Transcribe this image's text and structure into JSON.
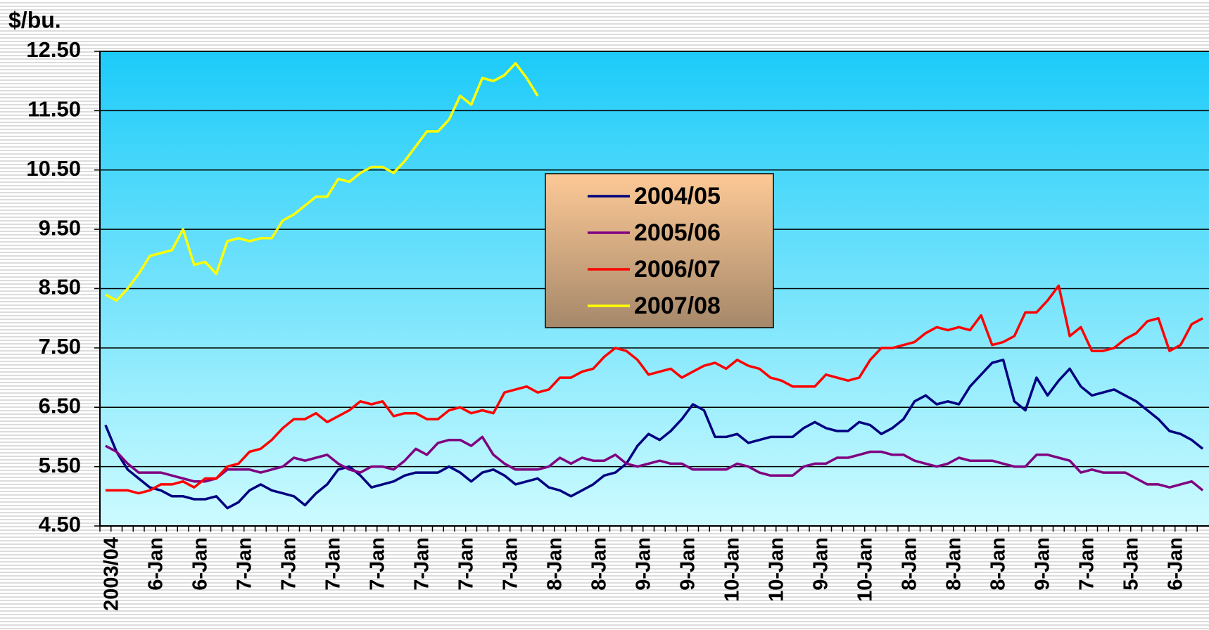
{
  "chart_data": {
    "type": "line",
    "y_label": "$/bu.",
    "categories": [
      "2003/04",
      null,
      null,
      null,
      "6-Jan",
      null,
      null,
      null,
      "6-Jan",
      null,
      null,
      null,
      "7-Jan",
      null,
      null,
      null,
      "7-Jan",
      null,
      null,
      null,
      "7-Jan",
      null,
      null,
      null,
      "7-Jan",
      null,
      null,
      null,
      "7-Jan",
      null,
      null,
      null,
      "7-Jan",
      null,
      null,
      null,
      "7-Jan",
      null,
      null,
      null,
      "8-Jan",
      null,
      null,
      null,
      "8-Jan",
      null,
      null,
      null,
      "9-Jan",
      null,
      null,
      null,
      "9-Jan",
      null,
      null,
      null,
      "10-Jan",
      null,
      null,
      null,
      "10-Jan",
      null,
      null,
      null,
      "9-Jan",
      null,
      null,
      null,
      "10-Jan",
      null,
      null,
      null,
      "8-Jan",
      null,
      null,
      null,
      "8-Jan",
      null,
      null,
      null,
      "8-Jan",
      null,
      null,
      null,
      "9-Jan",
      null,
      null,
      null,
      "7-Jan",
      null,
      null,
      null,
      "5-Jan",
      null,
      null,
      null,
      "6-Jan",
      null,
      null,
      null
    ],
    "series": [
      {
        "name": "2004/05",
        "color": "#000080",
        "values": [
          6.2,
          5.75,
          5.45,
          5.3,
          5.15,
          5.1,
          5.0,
          5.0,
          4.95,
          4.95,
          5.0,
          4.8,
          4.9,
          5.1,
          5.2,
          5.1,
          5.05,
          5.0,
          4.85,
          5.05,
          5.2,
          5.45,
          5.5,
          5.35,
          5.15,
          5.2,
          5.25,
          5.35,
          5.4,
          5.4,
          5.4,
          5.5,
          5.4,
          5.25,
          5.4,
          5.45,
          5.35,
          5.2,
          5.25,
          5.3,
          5.15,
          5.1,
          5.0,
          5.1,
          5.2,
          5.35,
          5.4,
          5.55,
          5.85,
          6.05,
          5.95,
          6.1,
          6.3,
          6.55,
          6.45,
          6.0,
          6.0,
          6.05,
          5.9,
          5.95,
          6.0,
          6.0,
          6.0,
          6.15,
          6.25,
          6.15,
          6.1,
          6.1,
          6.25,
          6.2,
          6.05,
          6.15,
          6.3,
          6.6,
          6.7,
          6.55,
          6.6,
          6.55,
          6.85,
          7.05,
          7.25,
          7.3,
          6.6,
          6.45,
          7.0,
          6.7,
          6.95,
          7.15,
          6.85,
          6.7,
          6.75,
          6.8,
          6.7,
          6.6,
          6.45,
          6.3,
          6.1,
          6.05,
          5.95,
          5.8
        ]
      },
      {
        "name": "2005/06",
        "color": "#800080",
        "values": [
          5.85,
          5.75,
          5.55,
          5.4,
          5.4,
          5.4,
          5.35,
          5.3,
          5.25,
          5.25,
          5.3,
          5.45,
          5.45,
          5.45,
          5.4,
          5.45,
          5.5,
          5.65,
          5.6,
          5.65,
          5.7,
          5.55,
          5.45,
          5.4,
          5.5,
          5.5,
          5.45,
          5.6,
          5.8,
          5.7,
          5.9,
          5.95,
          5.95,
          5.85,
          6.0,
          5.7,
          5.55,
          5.45,
          5.45,
          5.45,
          5.5,
          5.65,
          5.55,
          5.65,
          5.6,
          5.6,
          5.7,
          5.55,
          5.5,
          5.55,
          5.6,
          5.55,
          5.55,
          5.45,
          5.45,
          5.45,
          5.45,
          5.55,
          5.5,
          5.4,
          5.35,
          5.35,
          5.35,
          5.5,
          5.55,
          5.55,
          5.65,
          5.65,
          5.7,
          5.75,
          5.75,
          5.7,
          5.7,
          5.6,
          5.55,
          5.5,
          5.55,
          5.65,
          5.6,
          5.6,
          5.6,
          5.55,
          5.5,
          5.5,
          5.7,
          5.7,
          5.65,
          5.6,
          5.4,
          5.45,
          5.4,
          5.4,
          5.4,
          5.3,
          5.2,
          5.2,
          5.15,
          5.2,
          5.25,
          5.1
        ]
      },
      {
        "name": "2006/07",
        "color": "#ff0000",
        "values": [
          5.1,
          5.1,
          5.1,
          5.05,
          5.1,
          5.2,
          5.2,
          5.25,
          5.15,
          5.3,
          5.3,
          5.5,
          5.55,
          5.75,
          5.8,
          5.95,
          6.15,
          6.3,
          6.3,
          6.4,
          6.25,
          6.35,
          6.45,
          6.6,
          6.55,
          6.6,
          6.35,
          6.4,
          6.4,
          6.3,
          6.3,
          6.45,
          6.5,
          6.4,
          6.45,
          6.4,
          6.75,
          6.8,
          6.85,
          6.75,
          6.8,
          7.0,
          7.0,
          7.1,
          7.15,
          7.35,
          7.5,
          7.45,
          7.3,
          7.05,
          7.1,
          7.15,
          7.0,
          7.1,
          7.2,
          7.25,
          7.15,
          7.3,
          7.2,
          7.15,
          7.0,
          6.95,
          6.85,
          6.85,
          6.85,
          7.05,
          7.0,
          6.95,
          7.0,
          7.3,
          7.5,
          7.5,
          7.55,
          7.6,
          7.75,
          7.85,
          7.8,
          7.85,
          7.8,
          8.05,
          7.55,
          7.6,
          7.7,
          8.1,
          8.1,
          8.3,
          8.55,
          7.7,
          7.85,
          7.45,
          7.45,
          7.5,
          7.65,
          7.75,
          7.95,
          8.0,
          7.45,
          7.55,
          7.9,
          8.0
        ]
      },
      {
        "name": "2007/08",
        "color": "#ffff00",
        "values": [
          8.4,
          8.3,
          8.5,
          8.75,
          9.05,
          9.1,
          9.15,
          9.5,
          8.9,
          8.95,
          8.75,
          9.3,
          9.35,
          9.3,
          9.35,
          9.35,
          9.65,
          9.75,
          9.9,
          10.05,
          10.05,
          10.35,
          10.3,
          10.45,
          10.55,
          10.55,
          10.45,
          10.65,
          10.9,
          11.15,
          11.15,
          11.35,
          11.75,
          11.6,
          12.05,
          12.0,
          12.1,
          12.3,
          12.05,
          11.75,
          null,
          null,
          null,
          null,
          null,
          null,
          null,
          null,
          null,
          null,
          null,
          null,
          null,
          null,
          null,
          null,
          null,
          null,
          null,
          null,
          null,
          null,
          null,
          null,
          null,
          null,
          null,
          null,
          null,
          null,
          null,
          null,
          null,
          null,
          null,
          null,
          null,
          null,
          null,
          null,
          null,
          null,
          null,
          null,
          null,
          null,
          null,
          null,
          null,
          null,
          null,
          null,
          null,
          null,
          null,
          null,
          null,
          null,
          null,
          null
        ]
      }
    ],
    "ylim": [
      4.5,
      12.5
    ],
    "yticks": [
      {
        "value": 4.5,
        "label": "4.50"
      },
      {
        "value": 5.5,
        "label": "5.50"
      },
      {
        "value": 6.5,
        "label": "6.50"
      },
      {
        "value": 7.5,
        "label": "7.50"
      },
      {
        "value": 8.5,
        "label": "8.50"
      },
      {
        "value": 9.5,
        "label": "9.50"
      },
      {
        "value": 10.5,
        "label": "10.50"
      },
      {
        "value": 11.5,
        "label": "11.50"
      },
      {
        "value": 12.5,
        "label": "12.50"
      }
    ],
    "grid": true,
    "legend": "center"
  }
}
